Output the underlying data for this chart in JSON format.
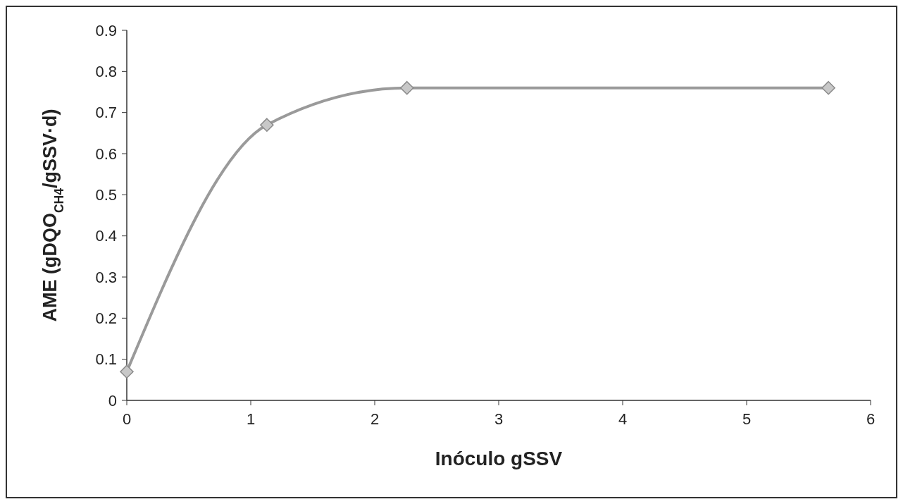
{
  "chart_data": {
    "type": "line",
    "xlabel": "Inóculo gSSV",
    "ylabel": "AME (gDQO$_{CH4}$/gSSV·d)",
    "x": [
      0,
      1.13,
      2.26,
      5.66
    ],
    "series": [
      {
        "color": "#9a9a9a",
        "values": [
          0.07,
          0.67,
          0.76,
          0.76
        ]
      }
    ],
    "xlim": [
      0,
      6
    ],
    "xticks": [
      0,
      1,
      2,
      3,
      4,
      5,
      6
    ],
    "ylim": [
      0,
      0.9
    ],
    "yticks": [
      0,
      0.1,
      0.2,
      0.3,
      0.4,
      0.5,
      0.6,
      0.7,
      0.8,
      0.9
    ],
    "grid": false,
    "marker": "diamond",
    "line_style": "solid"
  }
}
